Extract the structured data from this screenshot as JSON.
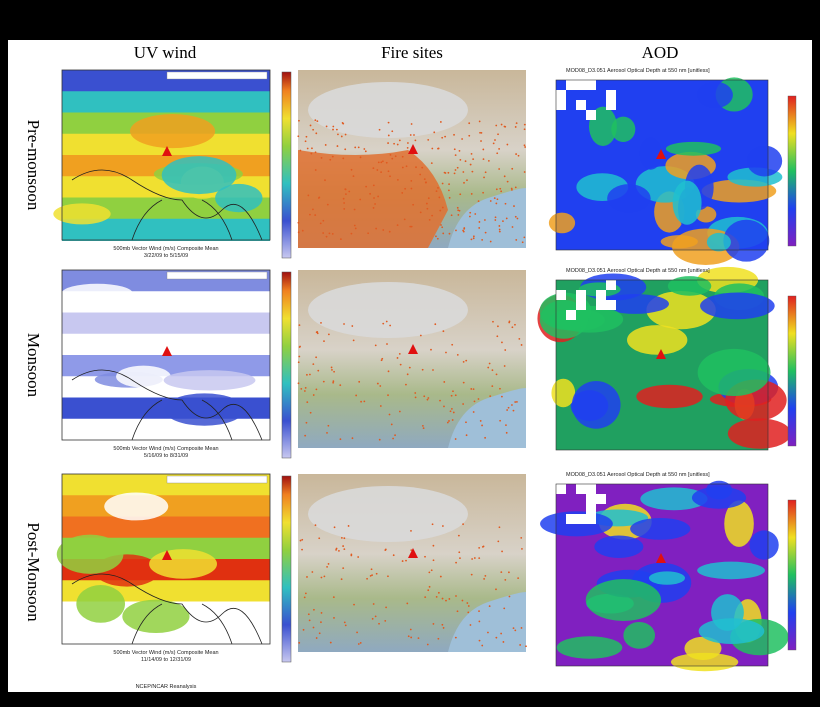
{
  "header": {
    "columns": [
      "UV wind",
      "Fire sites",
      "AOD"
    ]
  },
  "rows": [
    {
      "label": "Pre-monsoon",
      "wind_caption": "500mb Vector Wind (m/s) Composite Mean",
      "wind_dates": "3/22/09 to 5/15/09",
      "aod_title": "MOD08_D3.051 Aerosol Optical Depth at 550 nm [unitless]"
    },
    {
      "label": "Monsoon",
      "wind_caption": "500mb Vector Wind (m/s) Composite Mean",
      "wind_dates": "5/16/09 to 8/31/09",
      "aod_title": "MOD08_D3.051 Aerosol Optical Depth at 550 nm [unitless]"
    },
    {
      "label": "Post-Monsoon",
      "wind_caption": "500mb Vector Wind (m/s) Composite Mean",
      "wind_dates": "11/14/09 to 12/31/09",
      "aod_title": "MOD08_D3.051 Aerosol Optical Depth at 550 nm [unitless]"
    }
  ],
  "credit": "NCEP/NCAR Reanalysis"
}
